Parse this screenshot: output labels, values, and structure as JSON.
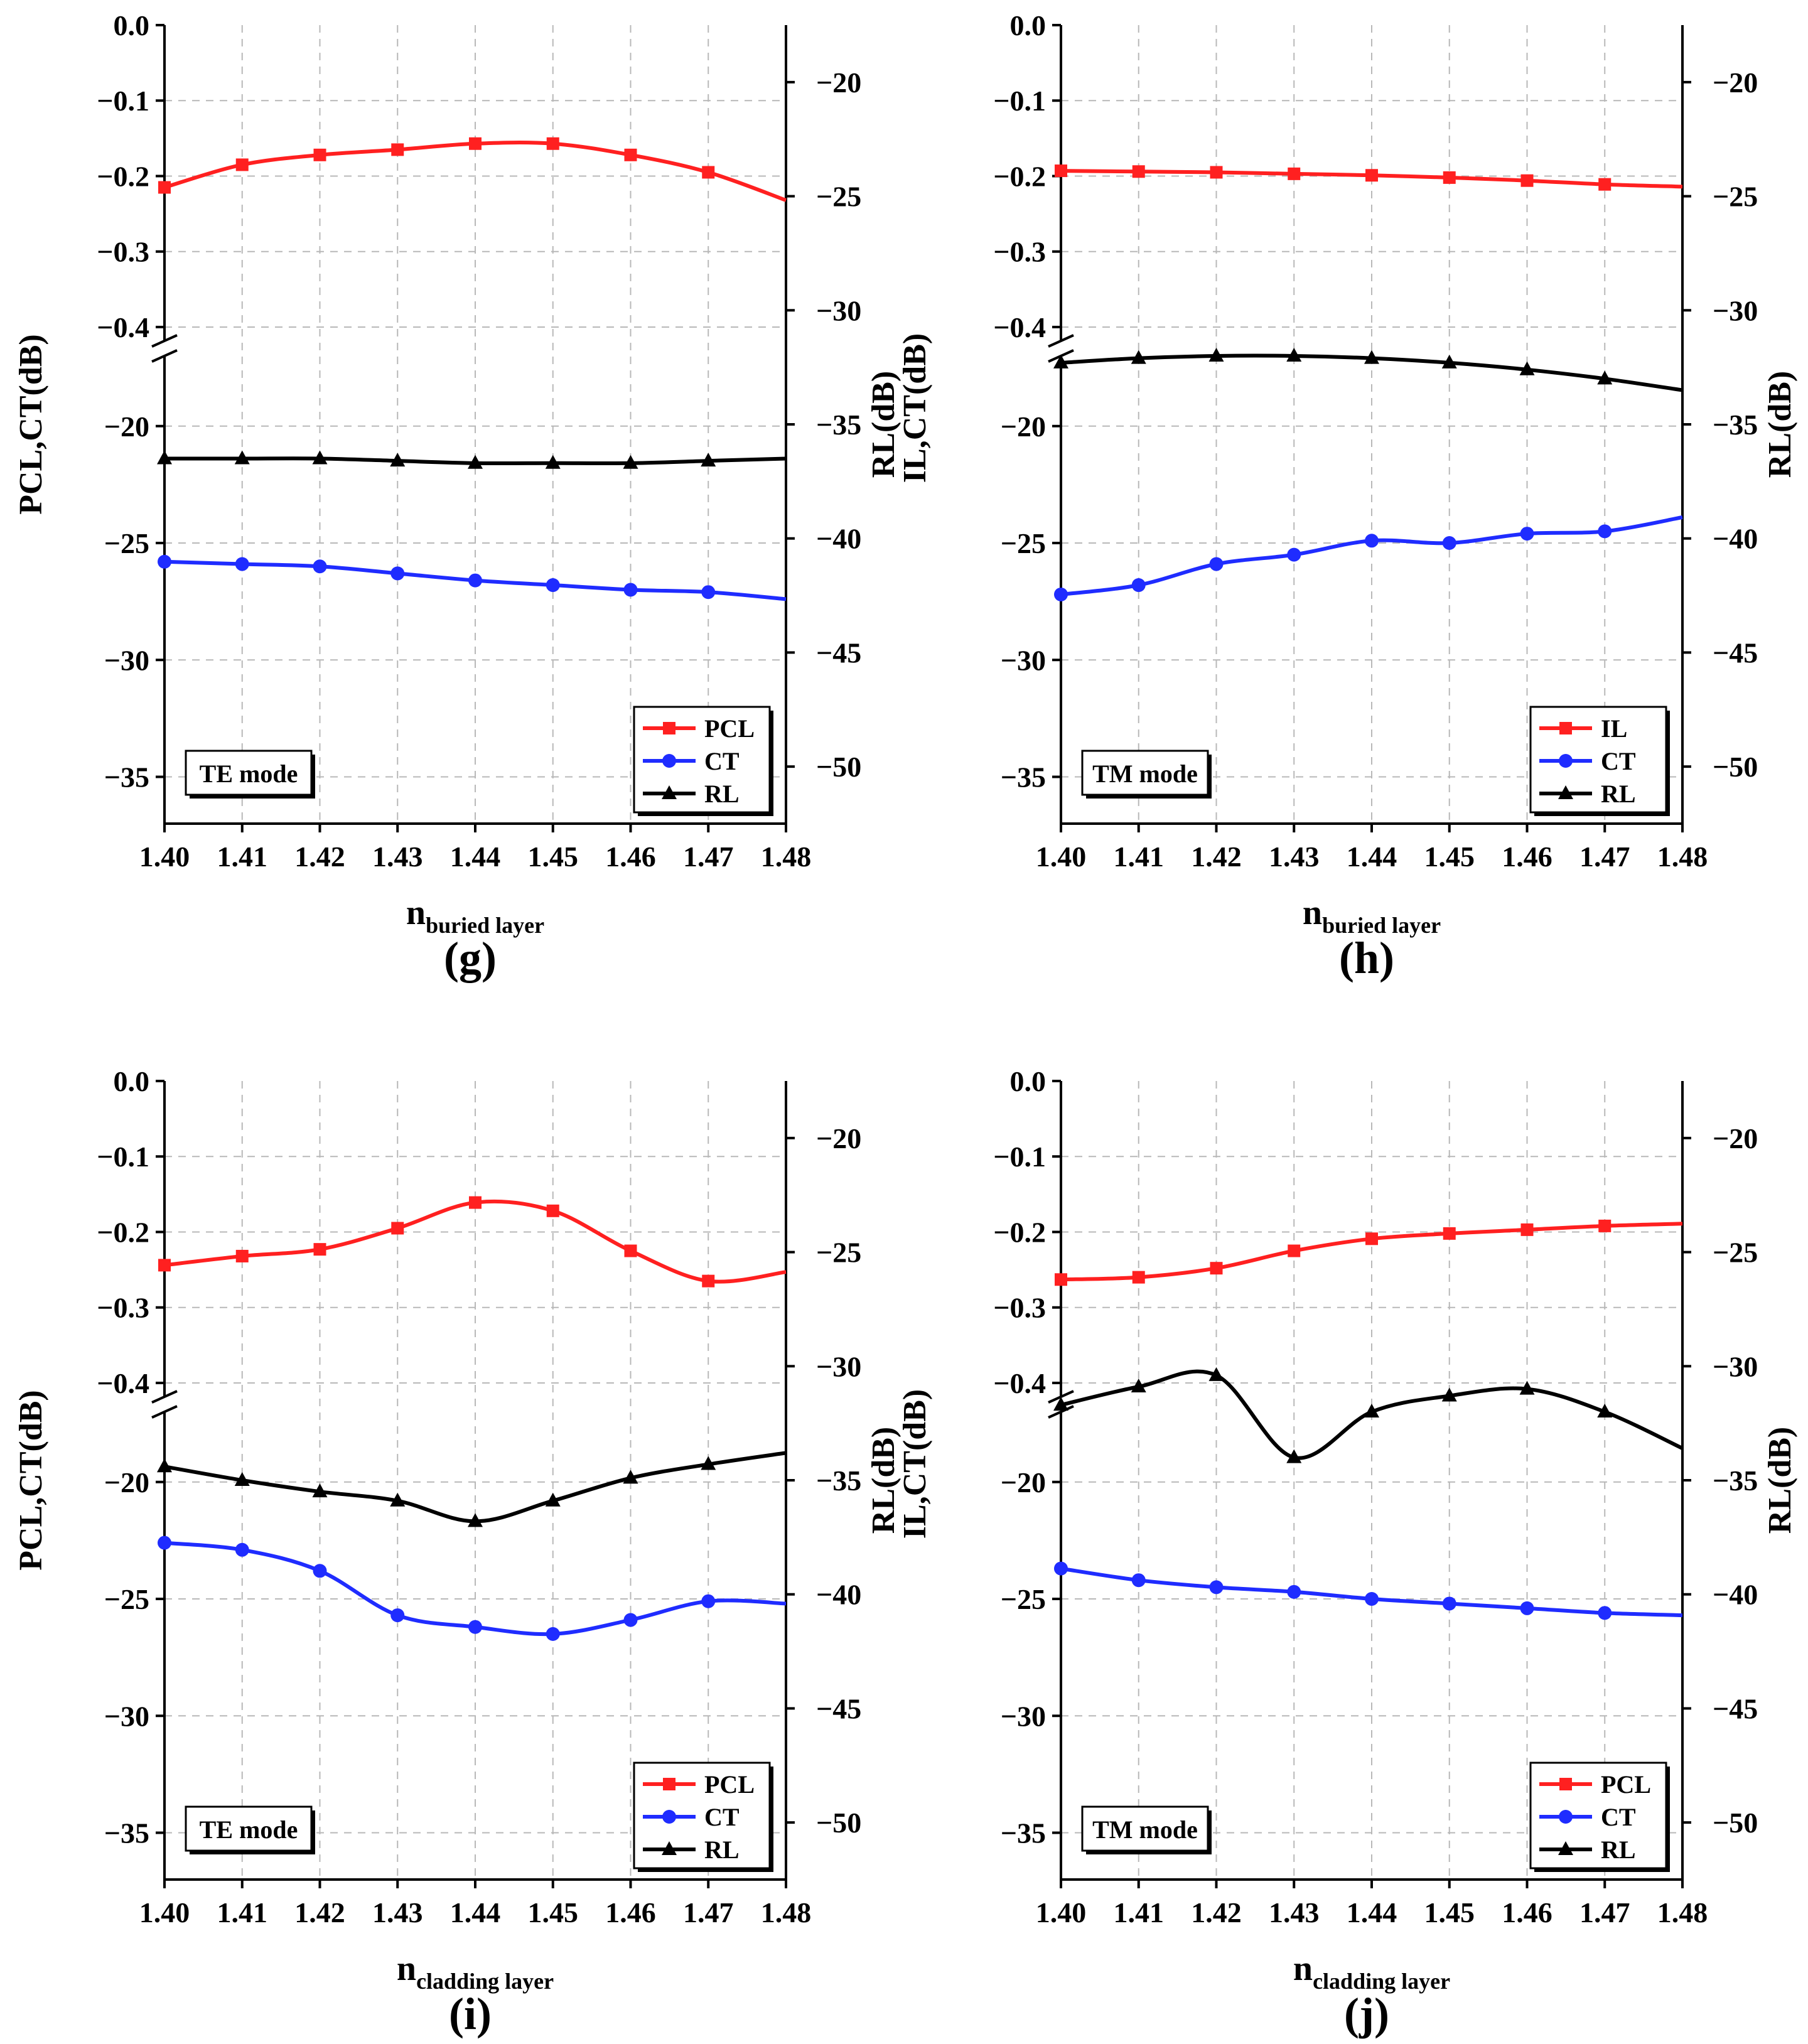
{
  "figure": {
    "colors": {
      "red": "#ff2020",
      "blue": "#1f2cff",
      "black": "#000000",
      "grid": "#b8b8b8"
    },
    "common": {
      "categories": [
        "1.40",
        "1.41",
        "1.42",
        "1.43",
        "1.44",
        "1.45",
        "1.46",
        "1.47",
        "1.48"
      ],
      "x": [
        1.4,
        1.41,
        1.42,
        1.43,
        1.44,
        1.45,
        1.46,
        1.47,
        1.48
      ],
      "left_upper_ticks": [
        "0.0",
        "−0.1",
        "−0.2",
        "−0.3",
        "−0.4"
      ],
      "left_lower_ticks": [
        "−20",
        "−25",
        "−30",
        "−35"
      ],
      "right_ticks": [
        "−20",
        "−25",
        "−30",
        "−35",
        "−40",
        "−45",
        "−50"
      ],
      "left_upper_values": [
        0.0,
        -0.1,
        -0.2,
        -0.3,
        -0.4
      ],
      "left_lower_values": [
        -20,
        -25,
        -30,
        -35
      ],
      "right_values": [
        -20,
        -25,
        -30,
        -35,
        -40,
        -45,
        -50
      ],
      "left_upper_range": [
        -0.42,
        0.0
      ],
      "left_lower_range": [
        -37,
        -17
      ],
      "right_range": [
        -52.5,
        -17.5
      ]
    }
  },
  "chart_data": [
    {
      "type": "line",
      "panel": "g",
      "panel_label": "(g)",
      "mode_label": "TE mode",
      "xlabel_main": "n",
      "xlabel_sub": "buried layer",
      "ylabel_left": "PCL,CT(dB)",
      "ylabel_right": "RL(dB)",
      "ylabel_right_extra": "IL,CT(dB)",
      "legend": [
        "PCL",
        "CT",
        "RL"
      ],
      "series": [
        {
          "name": "PCL",
          "axis": "left_upper",
          "color": "red",
          "marker": "square",
          "values": [
            -0.215,
            -0.185,
            -0.172,
            -0.165,
            -0.157,
            -0.157,
            -0.172,
            -0.195,
            -0.232
          ]
        },
        {
          "name": "CT",
          "axis": "left_lower",
          "color": "blue",
          "marker": "circle",
          "values": [
            -25.8,
            -25.9,
            -26.0,
            -26.3,
            -26.6,
            -26.8,
            -27.0,
            -27.1,
            -27.4
          ]
        },
        {
          "name": "RL",
          "axis": "right",
          "color": "black",
          "marker": "triangle",
          "values": [
            -36.5,
            -36.5,
            -36.5,
            -36.6,
            -36.7,
            -36.7,
            -36.7,
            -36.6,
            -36.5
          ]
        }
      ]
    },
    {
      "type": "line",
      "panel": "h",
      "panel_label": "(h)",
      "mode_label": "TM mode",
      "xlabel_main": "n",
      "xlabel_sub": "buried layer",
      "ylabel_left": "",
      "ylabel_right": "RL(dB)",
      "ylabel_right_extra": "",
      "legend": [
        "IL",
        "CT",
        "RL"
      ],
      "series": [
        {
          "name": "IL",
          "axis": "left_upper",
          "color": "red",
          "marker": "square",
          "values": [
            -0.193,
            -0.194,
            -0.195,
            -0.197,
            -0.199,
            -0.202,
            -0.206,
            -0.211,
            -0.214
          ]
        },
        {
          "name": "CT",
          "axis": "left_lower",
          "color": "blue",
          "marker": "circle",
          "values": [
            -27.2,
            -26.8,
            -25.9,
            -25.5,
            -24.9,
            -25.0,
            -24.6,
            -24.5,
            -23.9
          ]
        },
        {
          "name": "RL",
          "axis": "right",
          "color": "black",
          "marker": "triangle",
          "values": [
            -32.3,
            -32.1,
            -32.0,
            -32.0,
            -32.1,
            -32.3,
            -32.6,
            -33.0,
            -33.5
          ]
        }
      ]
    },
    {
      "type": "line",
      "panel": "i",
      "panel_label": "(i)",
      "mode_label": "TE mode",
      "xlabel_main": "n",
      "xlabel_sub": "cladding layer",
      "ylabel_left": "PCL,CT(dB)",
      "ylabel_right": "RL(dB)",
      "ylabel_right_extra": "IL,CT(dB)",
      "legend": [
        "PCL",
        "CT",
        "RL"
      ],
      "series": [
        {
          "name": "PCL",
          "axis": "left_upper",
          "color": "red",
          "marker": "square",
          "values": [
            -0.244,
            -0.232,
            -0.223,
            -0.195,
            -0.161,
            -0.172,
            -0.225,
            -0.265,
            -0.253
          ]
        },
        {
          "name": "CT",
          "axis": "left_lower",
          "color": "blue",
          "marker": "circle",
          "values": [
            -22.6,
            -22.9,
            -23.8,
            -25.7,
            -26.2,
            -26.5,
            -25.9,
            -25.1,
            -25.2
          ]
        },
        {
          "name": "RL",
          "axis": "right",
          "color": "black",
          "marker": "triangle",
          "values": [
            -34.4,
            -35.0,
            -35.5,
            -35.9,
            -36.8,
            -35.9,
            -34.9,
            -34.3,
            -33.8
          ]
        }
      ]
    },
    {
      "type": "line",
      "panel": "j",
      "panel_label": "(j)",
      "mode_label": "TM mode",
      "xlabel_main": "n",
      "xlabel_sub": "cladding layer",
      "ylabel_left": "",
      "ylabel_right": "RL(dB)",
      "ylabel_right_extra": "",
      "legend": [
        "PCL",
        "CT",
        "RL"
      ],
      "series": [
        {
          "name": "PCL",
          "axis": "left_upper",
          "color": "red",
          "marker": "square",
          "values": [
            -0.263,
            -0.26,
            -0.248,
            -0.225,
            -0.209,
            -0.202,
            -0.197,
            -0.192,
            -0.189
          ]
        },
        {
          "name": "CT",
          "axis": "left_lower",
          "color": "blue",
          "marker": "circle",
          "values": [
            -23.7,
            -24.2,
            -24.5,
            -24.7,
            -25.0,
            -25.2,
            -25.4,
            -25.6,
            -25.7
          ]
        },
        {
          "name": "RL",
          "axis": "right",
          "color": "black",
          "marker": "triangle",
          "values": [
            -31.7,
            -30.9,
            -30.4,
            -34.0,
            -32.0,
            -31.3,
            -31.0,
            -32.0,
            -33.6
          ]
        }
      ]
    }
  ]
}
